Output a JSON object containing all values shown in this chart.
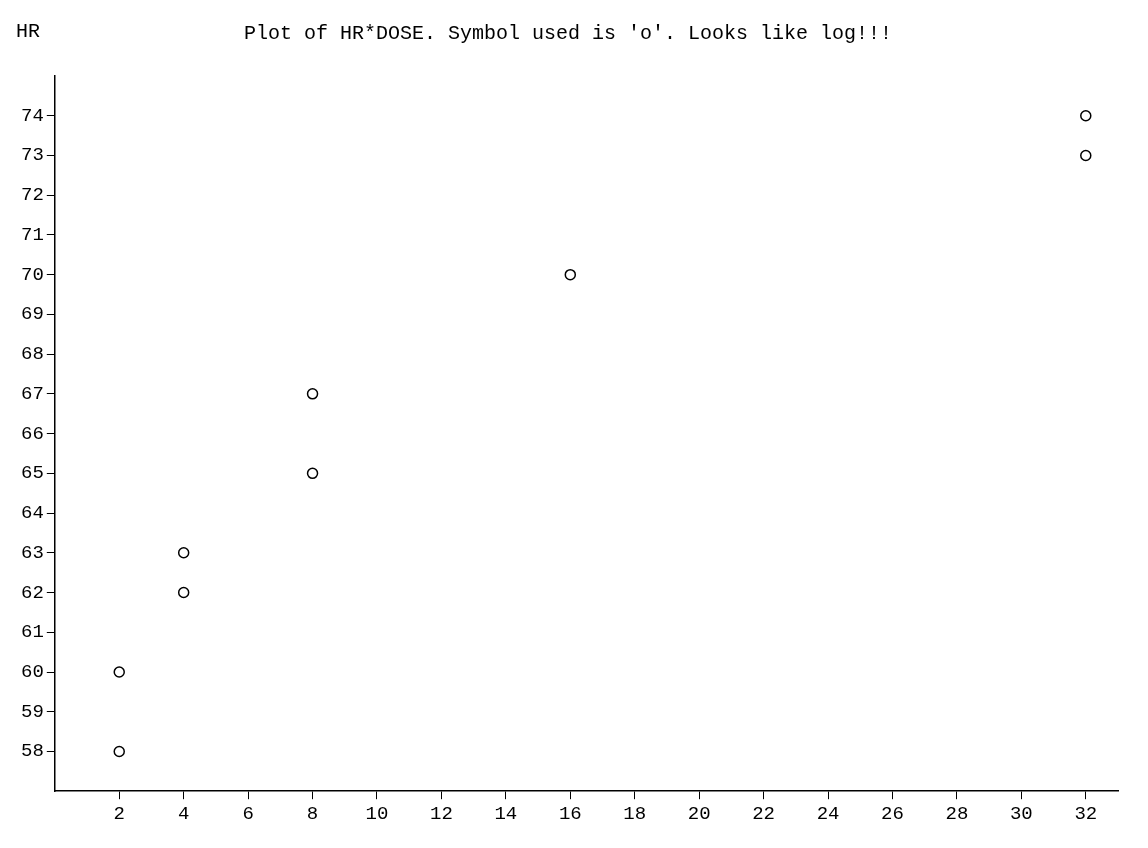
{
  "chart_data": {
    "type": "scatter",
    "title": "Plot of HR*DOSE. Symbol used is 'o'. Looks like log!!!",
    "ylabel": "HR",
    "marker": "circle",
    "grid": false,
    "legend": false,
    "xlim": [
      0,
      33
    ],
    "xticks": [
      2,
      4,
      6,
      8,
      10,
      12,
      14,
      16,
      18,
      20,
      22,
      24,
      26,
      28,
      30,
      32
    ],
    "ylim": [
      57,
      75
    ],
    "yticks": [
      58,
      59,
      60,
      61,
      62,
      63,
      64,
      65,
      66,
      67,
      68,
      69,
      70,
      71,
      72,
      73,
      74
    ],
    "series": [
      {
        "color": "#000000",
        "x": [
          2,
          2,
          4,
          4,
          8,
          8,
          16,
          32,
          32
        ],
        "values": [
          58,
          60,
          62,
          63,
          65,
          67,
          70,
          73,
          74
        ]
      }
    ]
  }
}
